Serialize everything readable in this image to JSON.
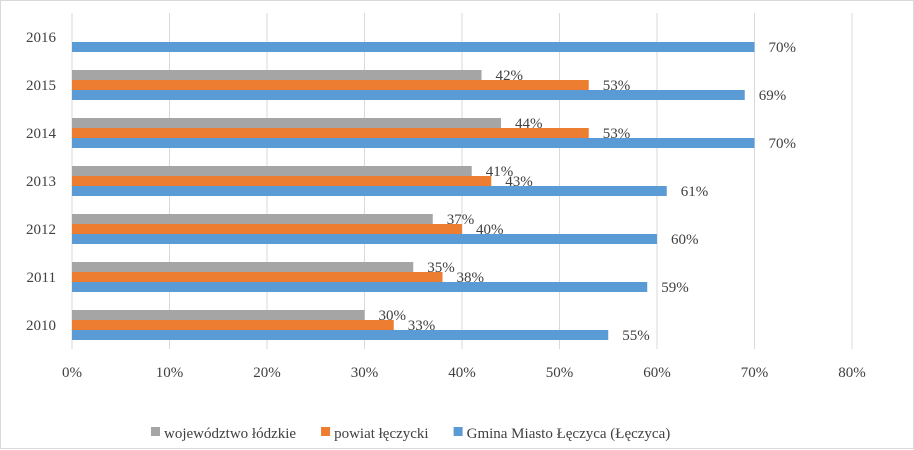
{
  "chart_data": {
    "type": "bar",
    "orientation": "horizontal",
    "categories": [
      "2010",
      "2011",
      "2012",
      "2013",
      "2014",
      "2015",
      "2016"
    ],
    "series": [
      {
        "name": "województwo łódzkie",
        "color": "#a5a5a5",
        "values": [
          30,
          35,
          37,
          41,
          44,
          42,
          null
        ]
      },
      {
        "name": "powiat łęczycki",
        "color": "#ed7d31",
        "values": [
          33,
          38,
          40,
          43,
          53,
          53,
          null
        ]
      },
      {
        "name": "Gmina Miasto Łęczyca (Łęczyca)",
        "color": "#5b9bd5",
        "values": [
          55,
          59,
          60,
          61,
          70,
          69,
          70
        ]
      }
    ],
    "data_labels": {
      "województwo łódzkie": [
        "30%",
        "35%",
        "37%",
        "41%",
        "44%",
        "42%",
        ""
      ],
      "powiat łęczycki": [
        "33%",
        "38%",
        "40%",
        "43%",
        "53%",
        "53%",
        ""
      ],
      "Gmina Miasto Łęczyca (Łęczyca)": [
        "55%",
        "59%",
        "60%",
        "61%",
        "70%",
        "69%",
        "70%"
      ]
    },
    "x_ticks": [
      "0%",
      "10%",
      "20%",
      "30%",
      "40%",
      "50%",
      "60%",
      "70%",
      "80%"
    ],
    "xlim": [
      0,
      80
    ],
    "xlabel": "",
    "ylabel": "",
    "title": "",
    "grid": "vertical",
    "legend": "bottom"
  }
}
